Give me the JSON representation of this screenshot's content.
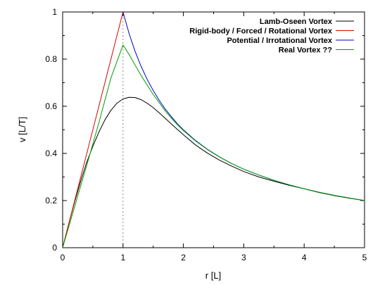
{
  "chart_data": {
    "type": "line",
    "title": "",
    "xlabel": "r [L]",
    "ylabel": "v [L/T]",
    "xlim": [
      0,
      5
    ],
    "ylim": [
      0,
      1
    ],
    "x_ticks": [
      "0",
      "1",
      "2",
      "3",
      "4",
      "5"
    ],
    "y_ticks": [
      "0",
      "0.2",
      "0.4",
      "0.6",
      "0.8",
      "1"
    ],
    "grid": false,
    "legend_position": "top-right",
    "reference_line": {
      "x": 1,
      "style": "dotted"
    },
    "series": [
      {
        "name": "Lamb-Oseen Vortex",
        "color": "#000000",
        "x": [
          0,
          0.1,
          0.2,
          0.3,
          0.4,
          0.5,
          0.6,
          0.7,
          0.8,
          0.9,
          1.0,
          1.1,
          1.2,
          1.3,
          1.4,
          1.5,
          1.6,
          1.7,
          1.8,
          1.9,
          2.0,
          2.2,
          2.4,
          2.6,
          2.8,
          3.0,
          3.25,
          3.5,
          3.75,
          4.0,
          4.25,
          4.5,
          4.75,
          5.0
        ],
        "y": [
          0,
          0.1,
          0.195,
          0.283,
          0.363,
          0.43,
          0.49,
          0.542,
          0.583,
          0.613,
          0.631,
          0.638,
          0.637,
          0.628,
          0.613,
          0.594,
          0.572,
          0.549,
          0.525,
          0.502,
          0.479,
          0.436,
          0.401,
          0.371,
          0.346,
          0.323,
          0.3,
          0.282,
          0.265,
          0.25,
          0.234,
          0.221,
          0.21,
          0.2
        ]
      },
      {
        "name": "Rigid-body / Forced / Rotational Vortex",
        "color": "#e00000",
        "x": [
          0,
          1
        ],
        "y": [
          0,
          1
        ]
      },
      {
        "name": "Potential / Irrotational Vortex",
        "color": "#0000c8",
        "x": [
          1.0,
          1.1,
          1.2,
          1.3,
          1.4,
          1.5,
          1.6,
          1.7,
          1.8,
          1.9,
          2.0,
          2.2,
          2.4,
          2.6,
          2.8,
          3.0,
          3.25,
          3.5,
          3.75,
          4.0,
          4.25,
          4.5,
          4.75,
          5.0
        ],
        "y": [
          1.0,
          0.909,
          0.833,
          0.769,
          0.714,
          0.667,
          0.625,
          0.588,
          0.556,
          0.526,
          0.5,
          0.455,
          0.417,
          0.385,
          0.357,
          0.333,
          0.308,
          0.286,
          0.267,
          0.25,
          0.235,
          0.222,
          0.211,
          0.2
        ]
      },
      {
        "name": "Real Vortex ??",
        "color": "#00a000",
        "x": [
          0,
          0.2,
          0.4,
          0.6,
          0.8,
          1.0,
          1.1,
          1.2,
          1.3,
          1.4,
          1.5,
          1.6,
          1.7,
          1.8,
          1.9,
          2.0,
          2.2,
          2.4,
          2.6,
          2.8,
          3.0,
          3.25,
          3.5,
          3.75,
          4.0,
          4.25,
          4.5,
          4.75,
          5.0
        ],
        "y": [
          0,
          0.175,
          0.35,
          0.53,
          0.72,
          0.86,
          0.82,
          0.775,
          0.73,
          0.69,
          0.65,
          0.615,
          0.58,
          0.55,
          0.522,
          0.497,
          0.453,
          0.416,
          0.384,
          0.357,
          0.333,
          0.308,
          0.286,
          0.267,
          0.25,
          0.235,
          0.222,
          0.211,
          0.2
        ]
      }
    ]
  }
}
